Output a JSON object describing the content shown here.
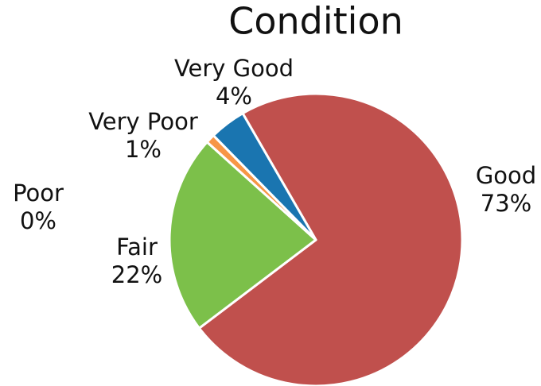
{
  "chart_data": {
    "type": "pie",
    "title": "Condition",
    "categories": [
      "Good",
      "Fair",
      "Poor",
      "Very Poor",
      "Very Good"
    ],
    "values": [
      73,
      22,
      0,
      1,
      4
    ],
    "value_labels": [
      "73%",
      "22%",
      "0%",
      "1%",
      "4%"
    ],
    "colors": [
      "#c0504d",
      "#7cc04a",
      "#8064a2",
      "#f79646",
      "#1a75b0"
    ]
  }
}
